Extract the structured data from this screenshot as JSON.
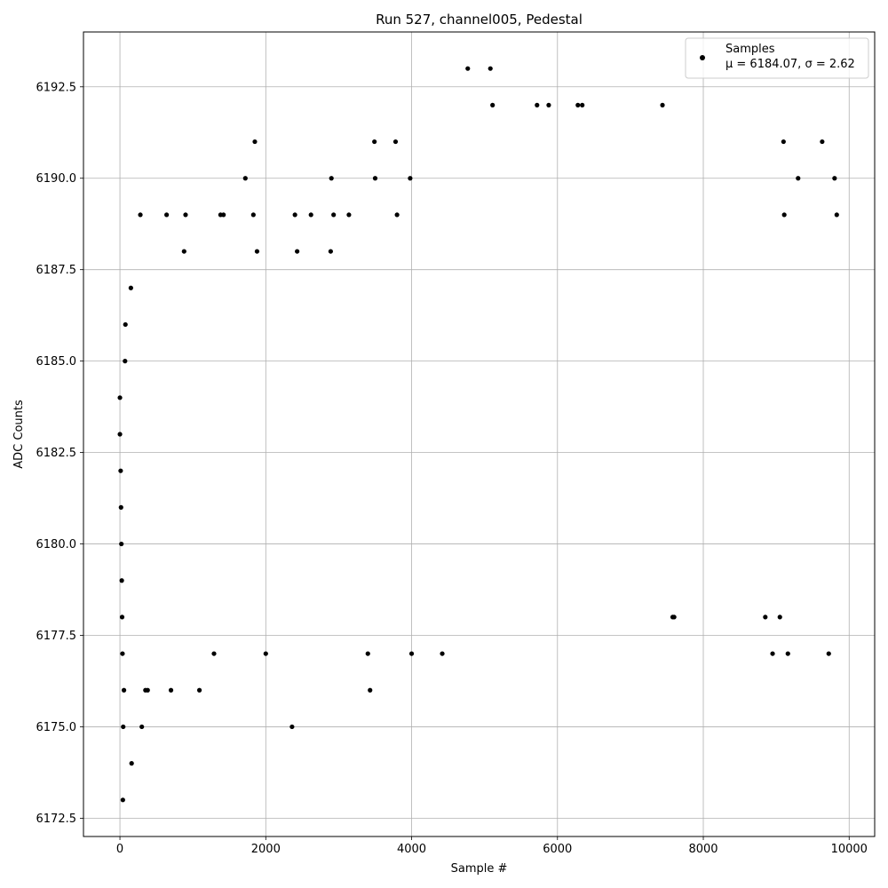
{
  "chart_data": {
    "type": "scatter",
    "title": "Run 527, channel005, Pedestal",
    "xlabel": "Sample #",
    "ylabel": "ADC Counts",
    "xlim": [
      -500,
      10350
    ],
    "ylim": [
      6172.0,
      6194.0
    ],
    "xticks": [
      0,
      2000,
      4000,
      6000,
      8000,
      10000
    ],
    "xtick_labels": [
      "0",
      "2000",
      "4000",
      "6000",
      "8000",
      "10000"
    ],
    "yticks": [
      6172.5,
      6175.0,
      6177.5,
      6180.0,
      6182.5,
      6185.0,
      6187.5,
      6190.0,
      6192.5
    ],
    "ytick_labels": [
      "6172.5",
      "6175.0",
      "6177.5",
      "6180.0",
      "6182.5",
      "6185.0",
      "6187.5",
      "6190.0",
      "6192.5"
    ],
    "grid": true,
    "legend_position": "top-right",
    "marker_color": "#000000",
    "series": [
      {
        "name": "Samples",
        "legend_stats": "μ = 6184.07, σ = 2.62",
        "points": [
          [
            0,
            6184
          ],
          [
            0,
            6183
          ],
          [
            10,
            6182
          ],
          [
            15,
            6181
          ],
          [
            20,
            6180
          ],
          [
            25,
            6179
          ],
          [
            30,
            6178
          ],
          [
            35,
            6177
          ],
          [
            40,
            6173
          ],
          [
            45,
            6175
          ],
          [
            55,
            6176
          ],
          [
            70,
            6185
          ],
          [
            75,
            6186
          ],
          [
            150,
            6187
          ],
          [
            160,
            6174
          ],
          [
            280,
            6189
          ],
          [
            300,
            6175
          ],
          [
            350,
            6176
          ],
          [
            380,
            6176
          ],
          [
            640,
            6189
          ],
          [
            700,
            6176
          ],
          [
            880,
            6188
          ],
          [
            900,
            6189
          ],
          [
            1090,
            6176
          ],
          [
            1290,
            6177
          ],
          [
            1380,
            6189
          ],
          [
            1420,
            6189
          ],
          [
            1720,
            6190
          ],
          [
            1850,
            6191
          ],
          [
            1830,
            6189
          ],
          [
            1880,
            6188
          ],
          [
            2000,
            6177
          ],
          [
            2360,
            6175
          ],
          [
            2400,
            6189
          ],
          [
            2430,
            6188
          ],
          [
            2620,
            6189
          ],
          [
            2890,
            6188
          ],
          [
            2900,
            6190
          ],
          [
            2930,
            6189
          ],
          [
            3140,
            6189
          ],
          [
            3400,
            6177
          ],
          [
            3430,
            6176
          ],
          [
            3490,
            6191
          ],
          [
            3500,
            6190
          ],
          [
            3780,
            6191
          ],
          [
            3800,
            6189
          ],
          [
            3980,
            6190
          ],
          [
            4000,
            6177
          ],
          [
            4420,
            6177
          ],
          [
            4770,
            6193
          ],
          [
            5080,
            6193
          ],
          [
            5110,
            6192
          ],
          [
            5720,
            6192
          ],
          [
            5880,
            6192
          ],
          [
            6280,
            6192
          ],
          [
            6340,
            6192
          ],
          [
            7440,
            6192
          ],
          [
            9100,
            6191
          ],
          [
            9630,
            6191
          ],
          [
            9110,
            6189
          ],
          [
            9300,
            6190
          ],
          [
            9800,
            6190
          ],
          [
            9830,
            6189
          ],
          [
            8950,
            6177
          ],
          [
            9160,
            6177
          ],
          [
            9720,
            6177
          ],
          [
            7580,
            6178
          ],
          [
            7600,
            6178
          ],
          [
            8850,
            6178
          ],
          [
            9050,
            6178
          ]
        ]
      }
    ]
  }
}
